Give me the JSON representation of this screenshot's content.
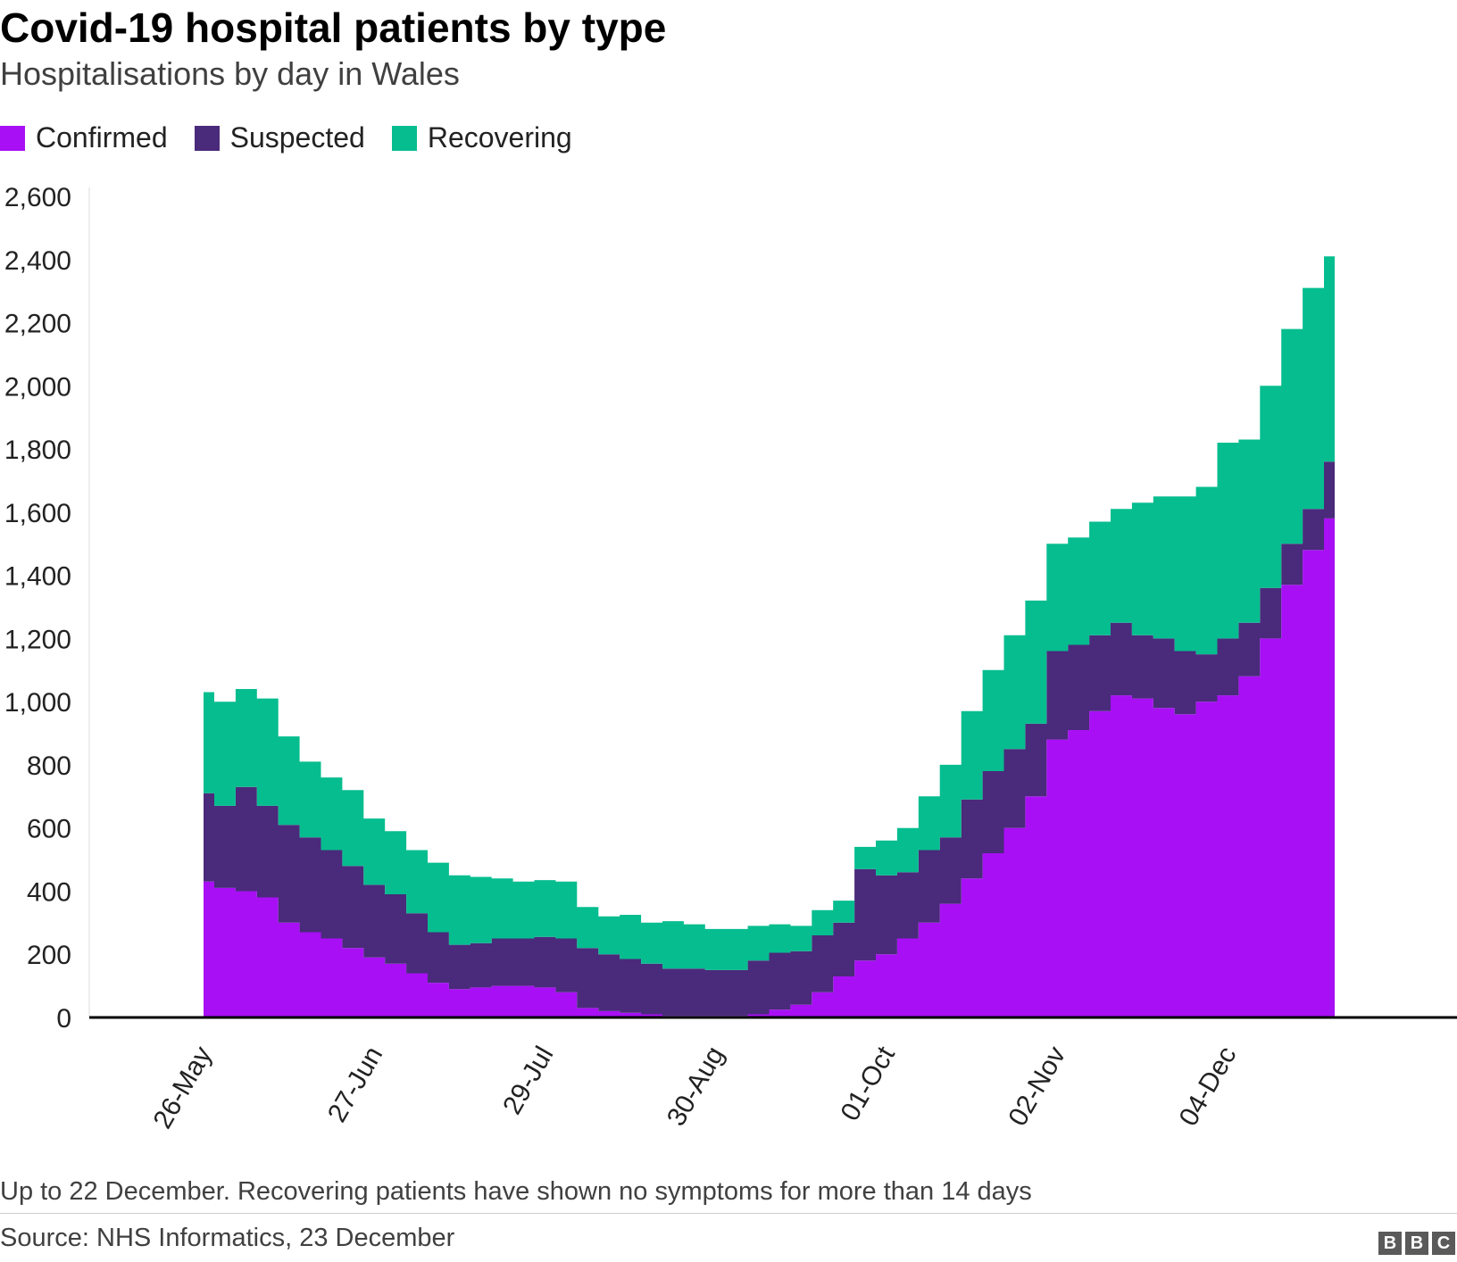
{
  "header": {
    "title": "Covid-19 hospital patients by type",
    "subtitle": "Hospitalisations by day in Wales"
  },
  "legend": {
    "items": [
      {
        "label": "Confirmed",
        "color": "#a80ff5"
      },
      {
        "label": "Suspected",
        "color": "#4a2a7b"
      },
      {
        "label": "Recovering",
        "color": "#06bd8f"
      }
    ]
  },
  "footer": {
    "note": "Up to 22 December. Recovering patients have shown no symptoms for more than 14 days",
    "source": "Source: NHS Informatics, 23 December",
    "logo_letters": [
      "B",
      "B",
      "C"
    ]
  },
  "chart_data": {
    "type": "area",
    "stacked": true,
    "x_tick_labels": [
      "26-May",
      "27-Jun",
      "29-Jul",
      "30-Aug",
      "01-Oct",
      "02-Nov",
      "04-Dec"
    ],
    "y_ticks": [
      0,
      200,
      400,
      600,
      800,
      1000,
      1200,
      1400,
      1600,
      1800,
      2000,
      2200,
      2400,
      2600
    ],
    "ylim": [
      0,
      2600
    ],
    "grid": false,
    "legend_position": "top-left",
    "x": [
      "26-May",
      "30-May",
      "03-Jun",
      "07-Jun",
      "11-Jun",
      "15-Jun",
      "19-Jun",
      "23-Jun",
      "27-Jun",
      "01-Jul",
      "05-Jul",
      "09-Jul",
      "13-Jul",
      "17-Jul",
      "21-Jul",
      "25-Jul",
      "29-Jul",
      "02-Aug",
      "06-Aug",
      "10-Aug",
      "14-Aug",
      "18-Aug",
      "22-Aug",
      "26-Aug",
      "30-Aug",
      "03-Sep",
      "07-Sep",
      "11-Sep",
      "15-Sep",
      "19-Sep",
      "23-Sep",
      "27-Sep",
      "01-Oct",
      "05-Oct",
      "09-Oct",
      "13-Oct",
      "17-Oct",
      "21-Oct",
      "25-Oct",
      "29-Oct",
      "02-Nov",
      "06-Nov",
      "10-Nov",
      "14-Nov",
      "18-Nov",
      "22-Nov",
      "26-Nov",
      "30-Nov",
      "04-Dec",
      "08-Dec",
      "12-Dec",
      "16-Dec",
      "20-Dec",
      "22-Dec"
    ],
    "series": [
      {
        "name": "Confirmed",
        "color": "#a80ff5",
        "values": [
          430,
          410,
          400,
          380,
          300,
          270,
          250,
          220,
          190,
          170,
          140,
          110,
          90,
          95,
          100,
          100,
          95,
          80,
          30,
          20,
          15,
          10,
          5,
          5,
          5,
          5,
          10,
          25,
          40,
          80,
          130,
          180,
          200,
          250,
          300,
          360,
          440,
          520,
          600,
          700,
          880,
          910,
          970,
          1020,
          1010,
          980,
          960,
          1000,
          1020,
          1080,
          1200,
          1370,
          1480,
          1580
        ]
      },
      {
        "name": "Suspected",
        "color": "#4a2a7b",
        "values": [
          280,
          260,
          330,
          290,
          310,
          300,
          280,
          260,
          230,
          220,
          190,
          160,
          140,
          140,
          150,
          150,
          160,
          170,
          190,
          180,
          170,
          160,
          150,
          150,
          145,
          145,
          170,
          180,
          170,
          180,
          170,
          290,
          250,
          210,
          230,
          210,
          250,
          260,
          250,
          230,
          280,
          270,
          240,
          230,
          200,
          220,
          200,
          150,
          180,
          170,
          160,
          130,
          130,
          180
        ]
      },
      {
        "name": "Recovering",
        "color": "#06bd8f",
        "values": [
          320,
          330,
          310,
          340,
          280,
          240,
          230,
          240,
          210,
          200,
          200,
          220,
          220,
          210,
          190,
          180,
          180,
          180,
          130,
          120,
          140,
          130,
          150,
          140,
          130,
          130,
          110,
          90,
          80,
          80,
          70,
          70,
          110,
          140,
          170,
          230,
          280,
          320,
          360,
          390,
          340,
          340,
          360,
          360,
          420,
          450,
          490,
          530,
          620,
          580,
          640,
          680,
          700,
          650
        ]
      }
    ]
  }
}
